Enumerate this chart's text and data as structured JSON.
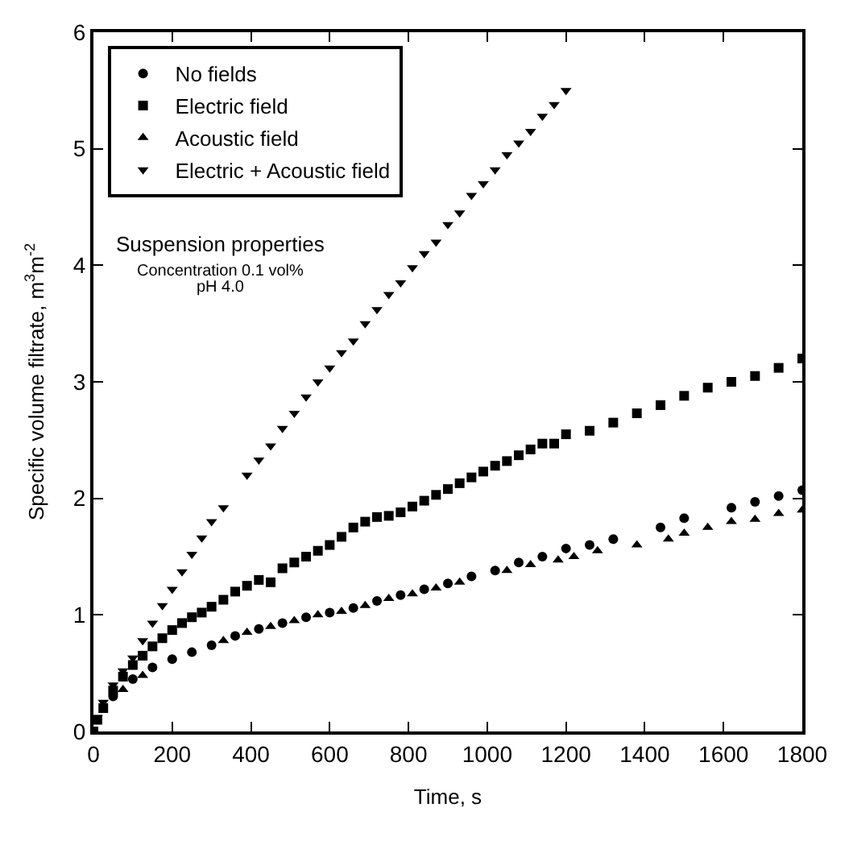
{
  "chart_data": {
    "type": "scatter",
    "xlabel": "Time, s",
    "ylabel": "Specific volume filtrate, m$^{3}$m$^{-2}$",
    "xlim": [
      0,
      1800
    ],
    "xticks": [
      0,
      200,
      400,
      600,
      800,
      1000,
      1200,
      1400,
      1600,
      1800
    ],
    "ylim": [
      0,
      6
    ],
    "yticks": [
      0,
      1,
      2,
      3,
      4,
      5,
      6
    ],
    "legend": "top left",
    "annotations": [
      "Suspension properties",
      "Concentration 0.1 vol%",
      "pH 4.0"
    ],
    "series": [
      {
        "name": "No fields",
        "color": "#000000",
        "marker": "circle",
        "x": [
          50,
          100,
          150,
          200,
          250,
          300,
          360,
          420,
          480,
          540,
          600,
          660,
          720,
          780,
          840,
          900,
          960,
          1020,
          1080,
          1140,
          1200,
          1260,
          1320,
          1440,
          1500,
          1620,
          1680,
          1740,
          1800
        ],
        "values": [
          0.3,
          0.45,
          0.55,
          0.62,
          0.68,
          0.74,
          0.82,
          0.88,
          0.93,
          0.98,
          1.02,
          1.06,
          1.12,
          1.17,
          1.22,
          1.27,
          1.33,
          1.38,
          1.45,
          1.5,
          1.57,
          1.6,
          1.65,
          1.75,
          1.83,
          1.92,
          1.97,
          2.02,
          2.07
        ]
      },
      {
        "name": "Electric field",
        "color": "#000000",
        "marker": "square",
        "x": [
          0,
          10,
          25,
          50,
          75,
          100,
          125,
          150,
          175,
          200,
          225,
          250,
          275,
          300,
          330,
          360,
          390,
          420,
          450,
          480,
          510,
          540,
          570,
          600,
          630,
          660,
          690,
          720,
          750,
          780,
          810,
          840,
          870,
          900,
          930,
          960,
          990,
          1020,
          1050,
          1080,
          1110,
          1140,
          1170,
          1200,
          1260,
          1320,
          1380,
          1440,
          1500,
          1560,
          1620,
          1680,
          1740,
          1800
        ],
        "values": [
          0,
          0.1,
          0.2,
          0.35,
          0.47,
          0.57,
          0.65,
          0.73,
          0.8,
          0.87,
          0.93,
          0.98,
          1.02,
          1.07,
          1.13,
          1.2,
          1.25,
          1.3,
          1.28,
          1.4,
          1.45,
          1.5,
          1.55,
          1.6,
          1.67,
          1.75,
          1.8,
          1.84,
          1.85,
          1.88,
          1.93,
          1.98,
          2.03,
          2.08,
          2.13,
          2.18,
          2.23,
          2.28,
          2.32,
          2.37,
          2.42,
          2.47,
          2.47,
          2.55,
          2.58,
          2.65,
          2.73,
          2.8,
          2.88,
          2.95,
          3.0,
          3.05,
          3.12,
          3.2
        ]
      },
      {
        "name": "Acoustic field",
        "color": "#000000",
        "marker": "triangle",
        "x": [
          75,
          125,
          330,
          390,
          450,
          510,
          570,
          630,
          690,
          750,
          810,
          870,
          930,
          1050,
          1110,
          1180,
          1220,
          1280,
          1380,
          1460,
          1500,
          1560,
          1620,
          1680,
          1740,
          1800
        ],
        "values": [
          0.36,
          0.48,
          0.78,
          0.85,
          0.9,
          0.95,
          1.0,
          1.03,
          1.08,
          1.14,
          1.18,
          1.23,
          1.28,
          1.38,
          1.43,
          1.47,
          1.5,
          1.55,
          1.6,
          1.65,
          1.7,
          1.75,
          1.8,
          1.82,
          1.87,
          1.9
        ]
      },
      {
        "name": "Electric + Acoustic field",
        "color": "#000000",
        "marker": "triangle-down",
        "x": [
          10,
          25,
          50,
          75,
          100,
          125,
          150,
          175,
          200,
          225,
          250,
          275,
          300,
          330,
          390,
          420,
          450,
          480,
          510,
          540,
          570,
          600,
          630,
          660,
          690,
          720,
          750,
          780,
          810,
          840,
          870,
          900,
          930,
          960,
          990,
          1020,
          1050,
          1080,
          1110,
          1140,
          1170,
          1200
        ],
        "values": [
          0.12,
          0.25,
          0.4,
          0.52,
          0.63,
          0.78,
          0.93,
          1.08,
          1.22,
          1.37,
          1.52,
          1.66,
          1.8,
          1.92,
          2.2,
          2.33,
          2.45,
          2.6,
          2.73,
          2.87,
          3.0,
          3.12,
          3.25,
          3.35,
          3.5,
          3.62,
          3.75,
          3.85,
          3.98,
          4.1,
          4.2,
          4.35,
          4.45,
          4.6,
          4.7,
          4.82,
          4.95,
          5.05,
          5.15,
          5.28,
          5.38,
          5.5
        ]
      }
    ]
  }
}
